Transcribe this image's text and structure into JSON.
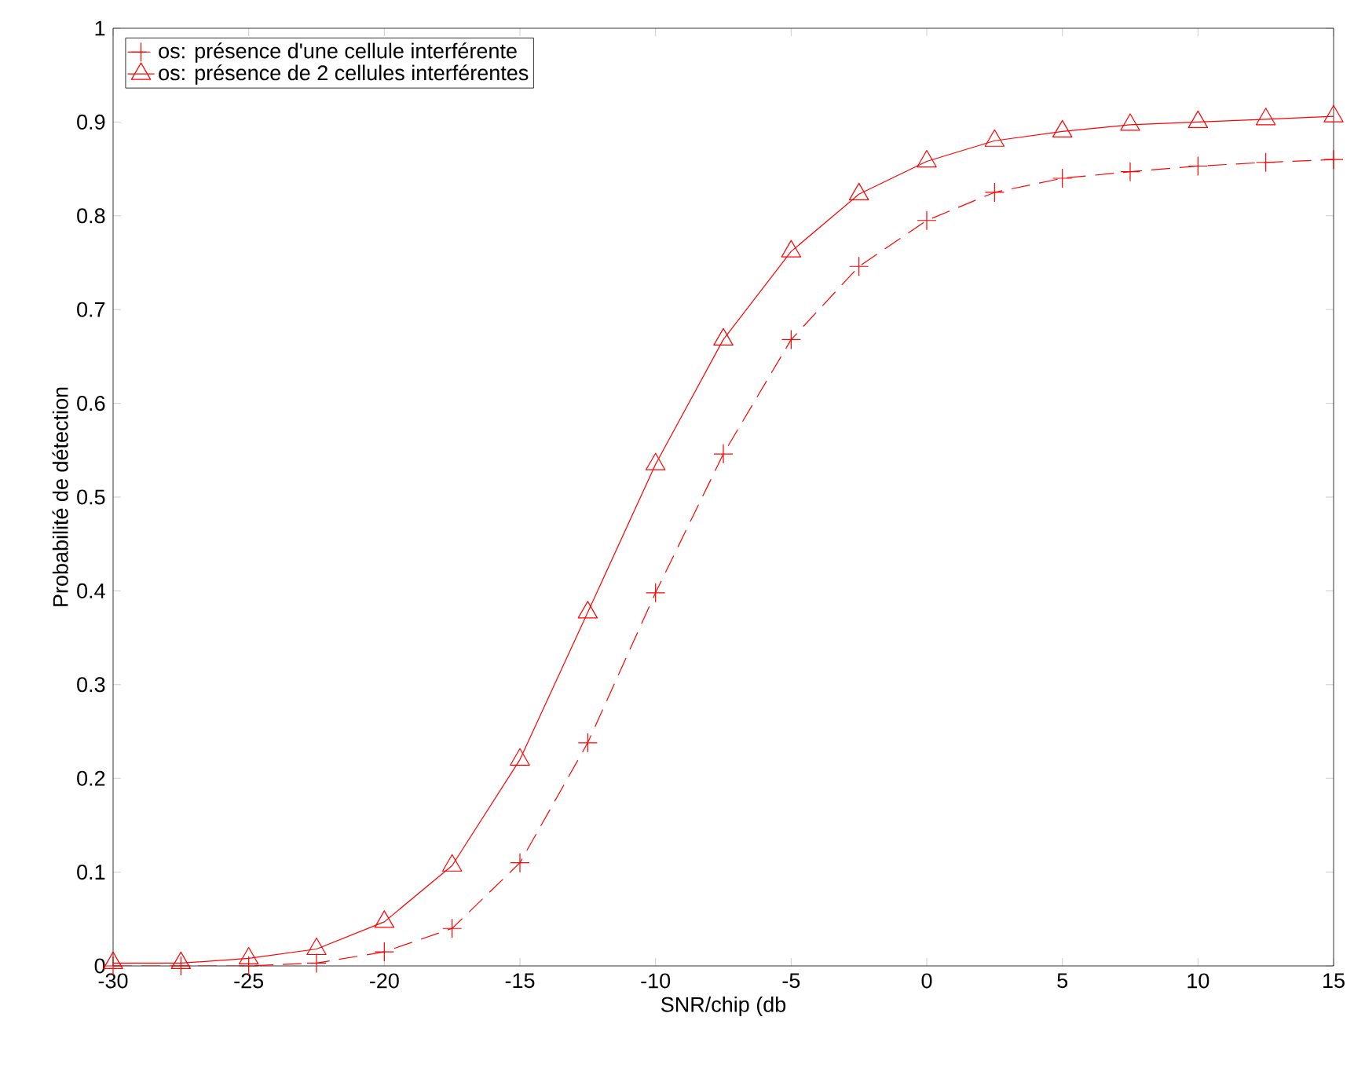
{
  "chart_data": {
    "type": "line",
    "xlabel": "SNR/chip (db",
    "ylabel": "Probabilité de détection",
    "x": [
      -30,
      -27.5,
      -25,
      -22.5,
      -20,
      -17.5,
      -15,
      -12.5,
      -10,
      -7.5,
      -5,
      -2.5,
      0,
      2.5,
      5,
      7.5,
      10,
      12.5,
      15
    ],
    "series": [
      {
        "name": "os: présence d'une cellule interférente",
        "color": "#ff0000",
        "marker": "cross",
        "line_style": "dashed",
        "values": [
          0,
          0,
          0,
          0.003,
          0.015,
          0.04,
          0.11,
          0.238,
          0.398,
          0.546,
          0.668,
          0.746,
          0.795,
          0.825,
          0.84,
          0.847,
          0.853,
          0.857,
          0.86
        ]
      },
      {
        "name": "os: présence de 2 cellules interférentes",
        "color": "#ff0000",
        "marker": "triangle",
        "line_style": "solid",
        "values": [
          0.003,
          0.003,
          0.008,
          0.018,
          0.047,
          0.107,
          0.22,
          0.377,
          0.535,
          0.668,
          0.762,
          0.823,
          0.858,
          0.88,
          0.89,
          0.897,
          0.9,
          0.903,
          0.906
        ]
      }
    ],
    "xlim": [
      -30,
      15
    ],
    "xticks": [
      -30,
      -25,
      -20,
      -15,
      -10,
      -5,
      0,
      5,
      10,
      15
    ],
    "ylim": [
      0,
      1
    ],
    "yticks": [
      0,
      0.1,
      0.2,
      0.3,
      0.4,
      0.5,
      0.6,
      0.7,
      0.8,
      0.9,
      1
    ],
    "grid": false,
    "legend": "top left"
  }
}
